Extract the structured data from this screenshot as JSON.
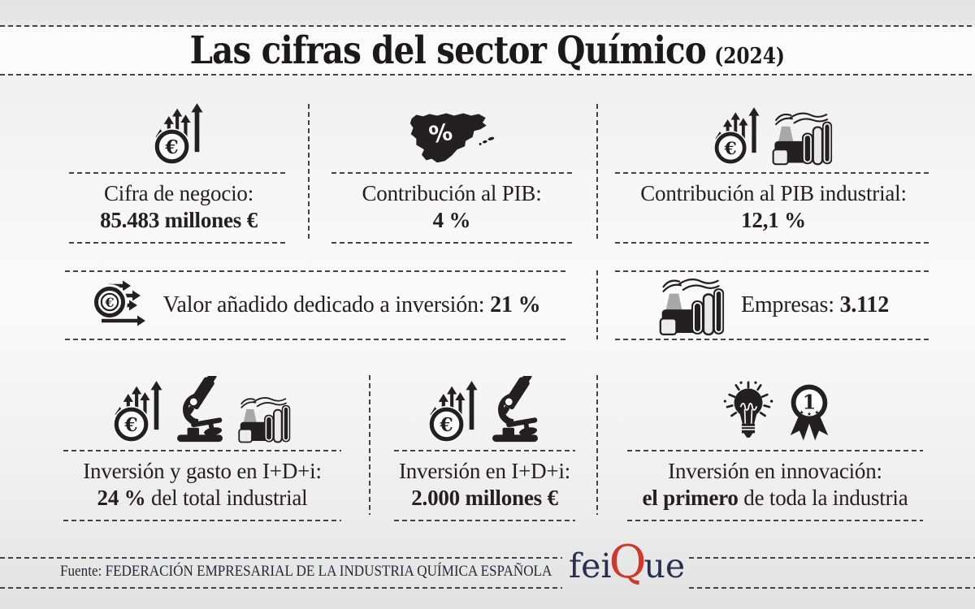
{
  "title": {
    "text": "Las cifras del sector Químico",
    "suffix": "(2024)"
  },
  "cards": {
    "cifra_negocio": {
      "icons": [
        "money-growth-icon"
      ],
      "line1": [
        {
          "text": "Cifra de negocio:",
          "bold": false
        }
      ],
      "line2": [
        {
          "text": "85.483 millones €",
          "bold": true
        }
      ]
    },
    "contribucion_pib": {
      "icons": [
        "spain-map-percent-icon"
      ],
      "line1": [
        {
          "text": "Contribución al PIB:",
          "bold": false
        }
      ],
      "line2": [
        {
          "text": "4 %",
          "bold": true
        }
      ]
    },
    "contribucion_pib_industrial": {
      "icons": [
        "money-growth-icon",
        "factory-icon"
      ],
      "line1": [
        {
          "text": "Contribución al PIB industrial:",
          "bold": false
        }
      ],
      "line2": [
        {
          "text": "12,1 %",
          "bold": true
        }
      ]
    },
    "valor_anadido": {
      "icons": [
        "euro-transfer-icon"
      ],
      "line": [
        {
          "text": "Valor añadido dedicado a inversión: ",
          "bold": false
        },
        {
          "text": "21 %",
          "bold": true
        }
      ]
    },
    "empresas": {
      "icons": [
        "factory-icon"
      ],
      "line": [
        {
          "text": "Empresas: ",
          "bold": false
        },
        {
          "text": "3.112",
          "bold": true
        }
      ]
    },
    "inversion_gasto_idi": {
      "icons": [
        "money-growth-icon",
        "microscope-icon",
        "factory-icon"
      ],
      "line1": [
        {
          "text": "Inversión y gasto en I+D+i:",
          "bold": false
        }
      ],
      "line2": [
        {
          "text": "24 %",
          "bold": true
        },
        {
          "text": " del total industrial",
          "bold": false
        }
      ]
    },
    "inversion_idi": {
      "icons": [
        "money-growth-icon",
        "microscope-icon"
      ],
      "line1": [
        {
          "text": "Inversión en I+D+i:",
          "bold": false
        }
      ],
      "line2": [
        {
          "text": "2.000 millones €",
          "bold": true
        }
      ]
    },
    "inversion_innovacion": {
      "icons": [
        "lightbulb-icon",
        "first-place-medal-icon"
      ],
      "line1": [
        {
          "text": "Inversión en innovación:",
          "bold": false
        }
      ],
      "line2": [
        {
          "text": "el primero",
          "bold": true
        },
        {
          "text": " de toda la industria",
          "bold": false
        }
      ]
    }
  },
  "footer": {
    "source": "Fuente: FEDERACIÓN EMPRESARIAL DE LA INDUSTRIA QUÍMICA ESPAÑOLA",
    "logo": {
      "p1": "fei",
      "p2": "Q",
      "p3": "ue"
    }
  },
  "colors": {
    "ink": "#242021",
    "dash": "#434343",
    "logo_navy": "#29304e",
    "logo_red": "#d0382b"
  },
  "chart_data": {
    "type": "table",
    "title": "Las cifras del sector Químico (2024)",
    "categories": [
      "Cifra de negocio",
      "Contribución al PIB",
      "Contribución al PIB industrial",
      "Valor añadido dedicado a inversión",
      "Empresas",
      "Inversión y gasto en I+D+i",
      "Inversión en I+D+i",
      "Inversión en innovación"
    ],
    "values": [
      "85.483 millones €",
      "4 %",
      "12,1 %",
      "21 %",
      "3.112",
      "24 % del total industrial",
      "2.000 millones €",
      "el primero de toda la industria"
    ],
    "source": "FEDERACIÓN EMPRESARIAL DE LA INDUSTRIA QUÍMICA ESPAÑOLA"
  }
}
